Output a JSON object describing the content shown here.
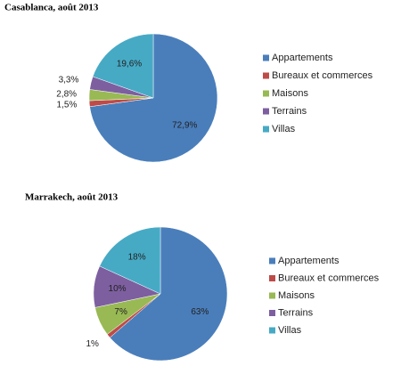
{
  "chart_data": [
    {
      "type": "pie",
      "title": "Casablanca, août 2013",
      "categories": [
        "Appartements",
        "Bureaux et commerces",
        "Maisons",
        "Terrains",
        "Villas"
      ],
      "values": [
        72.9,
        1.5,
        2.8,
        3.3,
        19.6
      ],
      "value_labels": [
        "72,9%",
        "1,5%",
        "2,8%",
        "3,3%",
        "19,6%"
      ],
      "colors": [
        "#4a7ebb",
        "#be4b48",
        "#98b954",
        "#7d5fa0",
        "#46aac5"
      ]
    },
    {
      "type": "pie",
      "title": "Marrakech,  août 2013",
      "categories": [
        "Appartements",
        "Bureaux et commerces",
        "Maisons",
        "Terrains",
        "Villas"
      ],
      "values": [
        63,
        1,
        7,
        10,
        18
      ],
      "value_labels": [
        "63%",
        "1%",
        "7%",
        "10%",
        "18%"
      ],
      "colors": [
        "#4a7ebb",
        "#be4b48",
        "#98b954",
        "#7d5fa0",
        "#46aac5"
      ]
    }
  ]
}
